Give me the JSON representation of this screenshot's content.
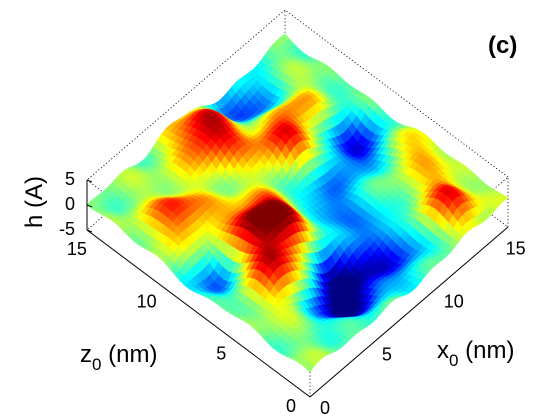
{
  "chart_data": {
    "type": "surface",
    "panel_label": "(c)",
    "x_axis": {
      "label_main": "x",
      "label_sub": "0",
      "label_unit": " (nm)",
      "range": [
        0,
        16
      ],
      "ticks": [
        "0",
        "5",
        "10",
        "15"
      ],
      "tick_values": [
        0,
        5,
        10,
        15
      ]
    },
    "z_axis": {
      "label_main": "z",
      "label_sub": "0",
      "label_unit": " (nm)",
      "range": [
        0,
        16
      ],
      "ticks": [
        "0",
        "5",
        "10",
        "15"
      ],
      "tick_values": [
        0,
        5,
        10,
        15
      ]
    },
    "h_axis": {
      "label": "h (A)",
      "range": [
        -5,
        5
      ],
      "ticks": [
        "-5",
        "0",
        "5"
      ],
      "tick_values": [
        -5,
        0,
        5
      ]
    },
    "colormap": "jet",
    "color_range": [
      -5,
      5
    ],
    "grid": false,
    "features": [
      {
        "x": 3.5,
        "z": 5.5,
        "h": 4.5,
        "w": 1.4
      },
      {
        "x": 6.5,
        "z": 7.5,
        "h": 5.0,
        "w": 1.6
      },
      {
        "x": 7.5,
        "z": 14.0,
        "h": 5.0,
        "w": 1.3
      },
      {
        "x": 10.0,
        "z": 10.5,
        "h": 4.5,
        "w": 1.5
      },
      {
        "x": 4.5,
        "z": 8.0,
        "h": 3.0,
        "w": 1.2
      },
      {
        "x": 13.0,
        "z": 2.0,
        "h": 4.0,
        "w": 1.3
      },
      {
        "x": 2.5,
        "z": 11.5,
        "h": 3.5,
        "w": 1.3
      },
      {
        "x": 12.5,
        "z": 12.0,
        "h": 2.5,
        "w": 1.3
      },
      {
        "x": 7.0,
        "z": 3.5,
        "h": -4.5,
        "w": 1.6
      },
      {
        "x": 9.0,
        "z": 8.0,
        "h": -4.5,
        "w": 1.8
      },
      {
        "x": 5.0,
        "z": 3.0,
        "h": -3.5,
        "w": 1.4
      },
      {
        "x": 13.5,
        "z": 9.0,
        "h": -4.0,
        "w": 1.4
      },
      {
        "x": 1.5,
        "z": 8.0,
        "h": -3.0,
        "w": 1.3
      },
      {
        "x": 10.5,
        "z": 2.5,
        "h": -3.0,
        "w": 1.5
      },
      {
        "x": 11.5,
        "z": 14.5,
        "h": -3.5,
        "w": 1.4
      },
      {
        "x": 15.0,
        "z": 5.5,
        "h": 2.0,
        "w": 1.2
      }
    ]
  }
}
